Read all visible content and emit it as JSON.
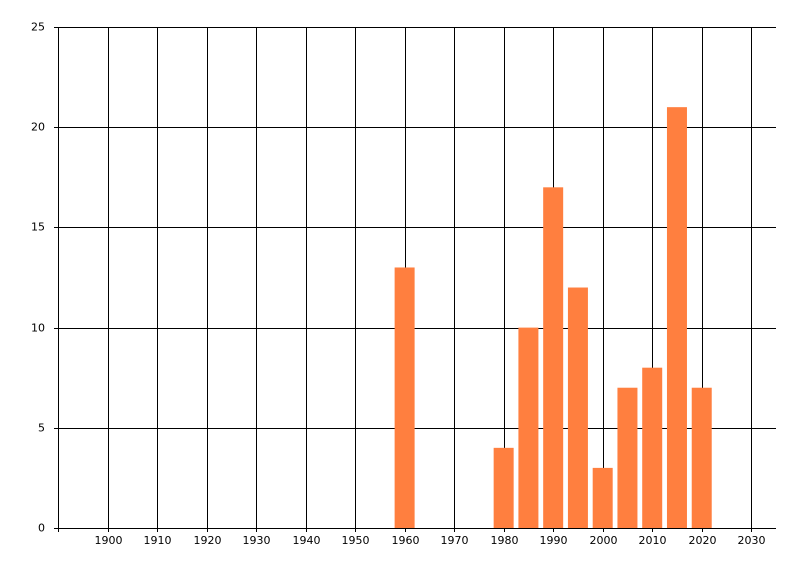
{
  "chart_data": {
    "type": "bar",
    "x": [
      1960,
      1980,
      1985,
      1990,
      1995,
      2000,
      2005,
      2010,
      2015,
      2020
    ],
    "values": [
      13,
      4,
      10,
      17,
      12,
      3,
      7,
      8,
      21,
      7
    ],
    "color": "#ff7f3f",
    "xlim": [
      1890,
      2035
    ],
    "xticks": [
      1900,
      1910,
      1920,
      1930,
      1940,
      1950,
      1960,
      1970,
      1980,
      1990,
      2000,
      2010,
      2020,
      2030
    ],
    "ylim": [
      0,
      25
    ],
    "yticks": [
      0,
      5,
      10,
      15,
      20,
      25
    ],
    "grid": true
  }
}
